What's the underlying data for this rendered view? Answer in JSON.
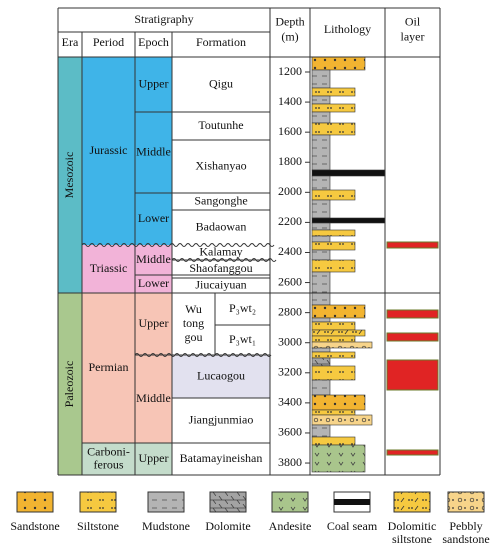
{
  "header": {
    "title": "Stratigraphy",
    "era": "Era",
    "period": "Period",
    "epoch": "Epoch",
    "formation": "Formation",
    "depth": [
      "Depth",
      "(m)"
    ],
    "lithology": "Lithology",
    "oil_layer": [
      "Oil",
      "layer"
    ]
  },
  "eras": [
    "Mesozoic",
    "Paleozoic"
  ],
  "periods": [
    [
      "Jurassic"
    ],
    [
      "Triassic"
    ],
    [
      "Permian"
    ],
    [
      "Carboni-",
      "ferous"
    ]
  ],
  "epochs": [
    "Upper",
    "Middle",
    "Lower",
    "Middle",
    "Lower",
    "Upper",
    "Middle",
    "Upper"
  ],
  "formations": [
    [
      "Qigu"
    ],
    [
      "Toutunhe"
    ],
    [
      "Xishanyao"
    ],
    [
      "Sangonghe"
    ],
    [
      "Badaowan"
    ],
    [
      "Kalamay"
    ],
    [
      "Shaofanggou"
    ],
    [
      "Jiucaiyuan"
    ],
    [
      "Wu",
      "tong",
      "gou"
    ],
    [
      "P₃wt₂"
    ],
    [
      "P₃wt₁"
    ],
    [
      "Lucaogou"
    ],
    [
      "Jiangjunmiao"
    ],
    [
      "Batamayineishan"
    ]
  ],
  "depths": [
    1200,
    1400,
    1600,
    1800,
    2000,
    2200,
    2400,
    2600,
    2800,
    3000,
    3200,
    3400,
    3600,
    3800
  ],
  "legend": [
    [
      "Sandstone"
    ],
    [
      "Siltstone"
    ],
    [
      "Mudstone"
    ],
    [
      "Dolomite"
    ],
    [
      "Andesite"
    ],
    [
      "Coal seam"
    ],
    [
      "Dolomitic",
      "siltstone"
    ],
    [
      "Pebbly",
      "sandstone"
    ]
  ]
}
